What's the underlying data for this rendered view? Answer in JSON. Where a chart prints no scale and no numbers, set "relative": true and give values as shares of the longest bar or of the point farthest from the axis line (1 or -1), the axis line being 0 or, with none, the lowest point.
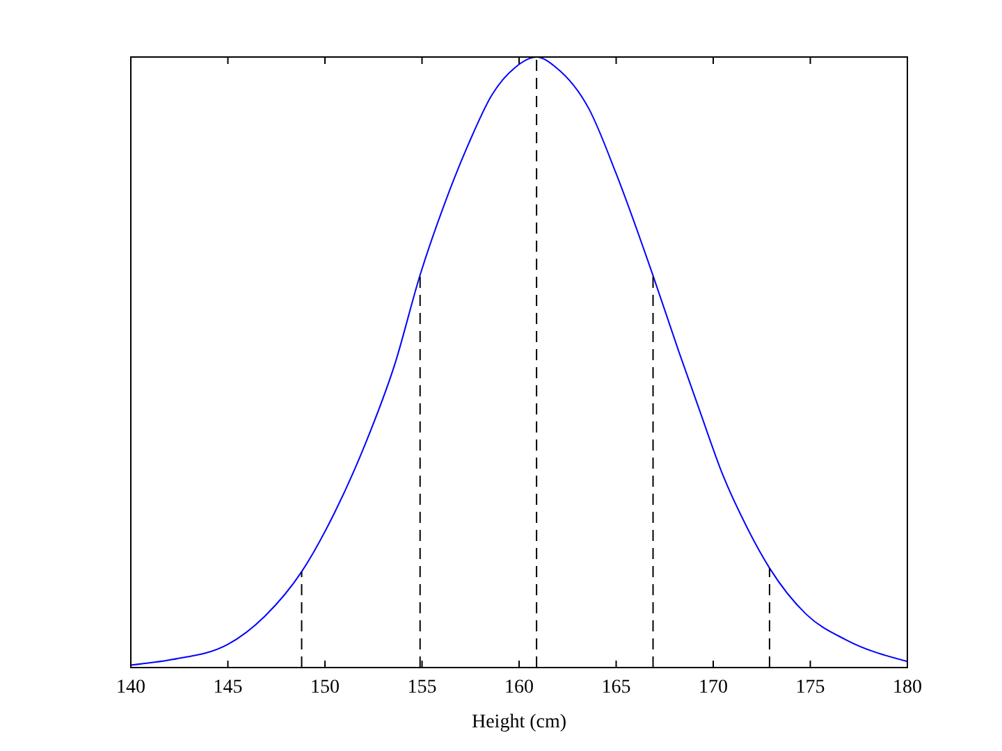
{
  "chart_data": {
    "type": "line",
    "xlabel": "Height (cm)",
    "relative": true,
    "xlim": [
      140,
      180
    ],
    "xticks": [
      140,
      145,
      150,
      155,
      160,
      165,
      170,
      175,
      180
    ],
    "grid": false,
    "series": [
      {
        "color": "#0000ff",
        "line_style": "solid",
        "x": [
          140,
          142.1,
          145,
          146.9,
          148.8,
          150.5,
          152.1,
          153.6,
          154.9,
          156.2,
          157.4,
          158.6,
          159.8,
          160.9,
          161.9,
          163.6,
          165,
          166.9,
          168.2,
          169.3,
          170.5,
          171.7,
          172.9,
          174.8,
          176.8,
          180
        ],
        "values": [
          0.004,
          0.013,
          0.038,
          0.084,
          0.157,
          0.254,
          0.368,
          0.497,
          0.643,
          0.763,
          0.858,
          0.938,
          0.983,
          1,
          0.983,
          0.915,
          0.809,
          0.642,
          0.52,
          0.421,
          0.315,
          0.232,
          0.163,
          0.087,
          0.046,
          0.01
        ]
      },
      {
        "color": "#000000",
        "line_style": "dashed",
        "x": [
          148.8,
          148.8
        ],
        "values": [
          0,
          0.157
        ]
      },
      {
        "color": "#000000",
        "line_style": "dashed",
        "x": [
          154.9,
          154.9
        ],
        "values": [
          0,
          0.643
        ]
      },
      {
        "color": "#000000",
        "line_style": "dashed",
        "x": [
          160.9,
          160.9
        ],
        "values": [
          0,
          1
        ]
      },
      {
        "color": "#000000",
        "line_style": "dashed",
        "x": [
          166.9,
          166.9
        ],
        "values": [
          0,
          0.642
        ]
      },
      {
        "color": "#000000",
        "line_style": "dashed",
        "x": [
          172.9,
          172.9
        ],
        "values": [
          0,
          0.163
        ]
      }
    ]
  }
}
